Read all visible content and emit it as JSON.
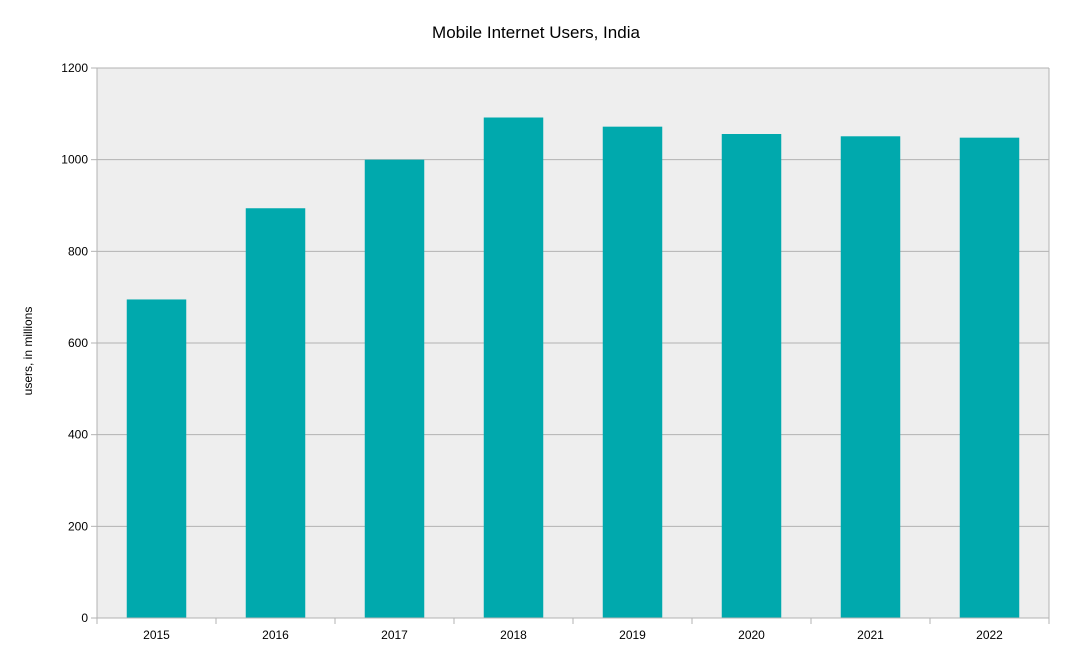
{
  "chart_data": {
    "type": "bar",
    "title": "Mobile Internet Users, India",
    "xlabel": "",
    "ylabel": "users, in millions",
    "categories": [
      "2015",
      "2016",
      "2017",
      "2018",
      "2019",
      "2020",
      "2021",
      "2022"
    ],
    "values": [
      695,
      894,
      1000,
      1092,
      1072,
      1056,
      1051,
      1048
    ],
    "ylim": [
      0,
      1200
    ],
    "yticks": [
      "0",
      "200",
      "400",
      "600",
      "800",
      "1000",
      "1200"
    ],
    "grid": true,
    "legend": "none",
    "colors": {
      "bar": "#00a9ad",
      "plot_background": "#eeeeee",
      "grid": "#b3b3b3",
      "axis": "#b3b3b3"
    }
  }
}
